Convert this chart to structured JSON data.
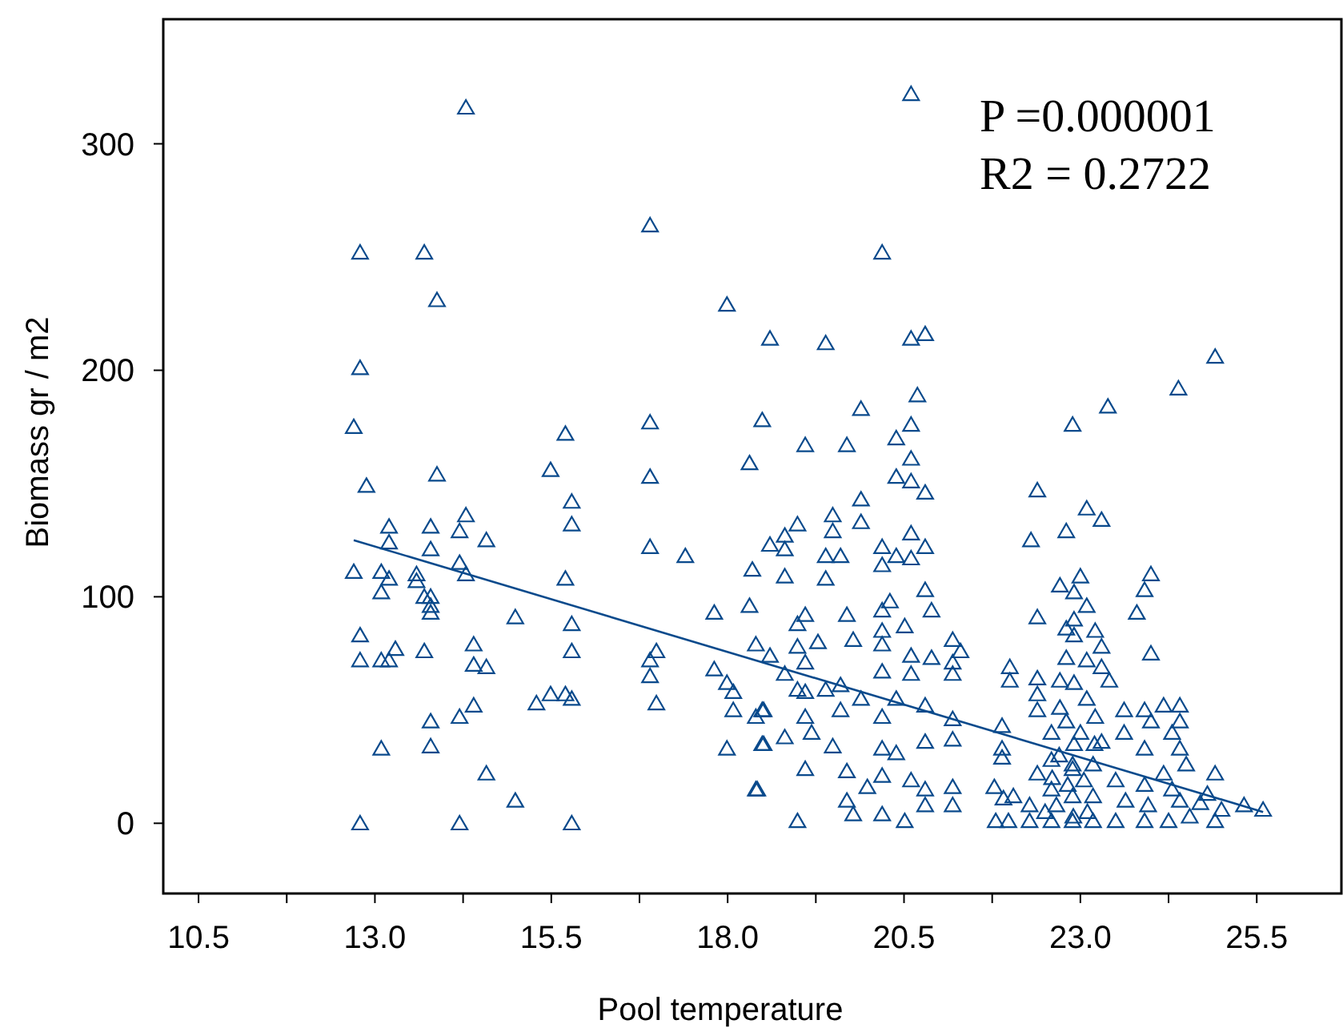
{
  "chart_data": {
    "type": "scatter",
    "xlabel": "Pool temperature",
    "ylabel": "Biomass gr / m2",
    "annotations": [
      "P =0.000001",
      "R2 = 0.2722"
    ],
    "xlim": [
      10.0,
      26.7
    ],
    "ylim": [
      -31,
      355
    ],
    "xticks": [
      {
        "value": 10.5,
        "label": "10.5"
      },
      {
        "value": 11.75,
        "label": null
      },
      {
        "value": 13,
        "label": "13.0"
      },
      {
        "value": 14.25,
        "label": null
      },
      {
        "value": 15.5,
        "label": "15.5"
      },
      {
        "value": 16.75,
        "label": null
      },
      {
        "value": 18,
        "label": "18.0"
      },
      {
        "value": 19.25,
        "label": null
      },
      {
        "value": 20.5,
        "label": "20.5"
      },
      {
        "value": 21.75,
        "label": null
      },
      {
        "value": 23,
        "label": "23.0"
      },
      {
        "value": 24.25,
        "label": null
      },
      {
        "value": 25.5,
        "label": "25.5"
      }
    ],
    "yticks": [
      0,
      100,
      200,
      300
    ],
    "grid": false,
    "series": [
      {
        "color": "#0a4a8c",
        "marker": "triangle",
        "x": [
          14.29,
          16.9,
          12.79,
          13.7,
          13.88,
          17.99,
          18.6,
          12.79,
          12.7,
          15.7,
          16.9,
          18.49,
          18.31,
          15.49,
          13.88,
          16.9,
          12.88,
          20.6,
          20.19,
          19.39,
          20.6,
          20.8,
          24.91,
          24.39,
          23.39,
          22.89,
          20.69,
          19.89,
          20.6,
          20.39,
          19.1,
          19.69,
          20.6,
          15.79,
          15.79,
          14.29,
          13.2,
          13.79,
          14.2,
          14.58,
          13.2,
          13.79,
          16.9,
          17.4,
          12.7,
          13.09,
          13.2,
          13.59,
          13.59,
          14.2,
          14.29,
          15.7,
          13.09,
          13.7,
          13.79,
          13.79,
          13.79,
          14.99,
          15.79,
          17.81,
          18.35,
          18.31,
          12.79,
          13.29,
          12.79,
          13.09,
          13.2,
          13.7,
          14.4,
          14.4,
          14.58,
          15.79,
          16.9,
          16.99,
          16.9,
          17.81,
          18.4,
          18.6,
          17.99,
          18.08,
          15.49,
          15.7,
          15.79,
          15.29,
          13.79,
          14.2,
          14.4,
          16.99,
          18.08,
          18.4,
          18.49,
          13.09,
          13.79,
          17.99,
          18.49,
          14.58,
          14.99,
          18.4,
          12.79,
          14.2,
          15.79,
          20.39,
          20.6,
          20.8,
          19.89,
          19.49,
          19.89,
          18.99,
          19.49,
          18.81,
          18.6,
          18.81,
          20.6,
          20.19,
          20.8,
          19.39,
          19.6,
          20.39,
          20.6,
          20.19,
          18.81,
          19.39,
          20.8,
          20.3,
          20.19,
          20.89,
          19.69,
          19.1,
          18.99,
          20.51,
          20.19,
          19.28,
          19.78,
          21.19,
          21.3,
          18.99,
          20.19,
          20.6,
          20.89,
          19.1,
          21.19,
          20.19,
          20.6,
          21.19,
          18.81,
          19.6,
          18.99,
          19.39,
          19.1,
          20.39,
          20.8,
          18.51,
          19.6,
          19.89,
          19.1,
          20.19,
          21.19,
          19.19,
          18.81,
          19.49,
          20.19,
          20.8,
          20.39,
          21.19,
          18.51,
          19.69,
          19.1,
          20.19,
          20.6,
          19.98,
          20.8,
          21.19,
          18.42,
          19.69,
          20.8,
          21.19,
          20.19,
          19.78,
          18.99,
          20.51,
          22.39,
          23.09,
          23.3,
          22.8,
          22.3,
          23.0,
          22.71,
          22.91,
          23.09,
          23.91,
          24.0,
          23.8,
          22.39,
          22.91,
          22.8,
          23.21,
          22.91,
          23.3,
          24.0,
          22.8,
          23.09,
          22.0,
          23.3,
          22.39,
          22.71,
          23.41,
          22.0,
          22.91,
          22.39,
          23.09,
          22.71,
          23.62,
          24.18,
          24.41,
          23.91,
          24.0,
          24.41,
          24.3,
          21.89,
          22.39,
          23.21,
          22.59,
          23.62,
          23.91,
          24.41,
          21.89,
          22.91,
          23.3,
          21.89,
          22.59,
          23.18,
          24.5,
          24.91,
          24.18,
          22.39,
          22.89,
          23.5,
          23.91,
          24.3,
          24.8,
          25.32,
          25.59,
          25.0,
          24.7,
          21.78,
          21.91,
          22.05,
          22.28,
          22.59,
          22.89,
          23.18,
          23.64,
          23.96,
          24.41,
          24.55,
          21.8,
          21.98,
          22.28,
          22.59,
          22.89,
          23.18,
          23.5,
          23.91,
          24.25,
          24.91,
          22.89,
          22.82,
          22.66,
          23.05,
          22.5,
          22.7,
          23.0,
          22.8,
          23.1,
          22.6,
          22.9,
          23.2
        ],
        "values": [
          316,
          264,
          252,
          252,
          231,
          229,
          214,
          201,
          175,
          172,
          177,
          178,
          159,
          156,
          154,
          153,
          149,
          322,
          252,
          212,
          214,
          216,
          206,
          192,
          184,
          176,
          189,
          183,
          176,
          170,
          167,
          167,
          161,
          142,
          132,
          136,
          131,
          131,
          129,
          125,
          124,
          121,
          122,
          118,
          111,
          111,
          108,
          110,
          107,
          115,
          110,
          108,
          102,
          100,
          100,
          96,
          93,
          91,
          88,
          93,
          112,
          96,
          83,
          77,
          72,
          72,
          72,
          76,
          79,
          70,
          69,
          76,
          72,
          76,
          65,
          68,
          79,
          74,
          62,
          58,
          57,
          57,
          55,
          53,
          45,
          47,
          52,
          53,
          50,
          47,
          50,
          33,
          34,
          33,
          35,
          22,
          10,
          15,
          0,
          0,
          0,
          153,
          151,
          146,
          143,
          136,
          133,
          132,
          129,
          127,
          123,
          121,
          128,
          122,
          122,
          118,
          118,
          118,
          117,
          114,
          109,
          108,
          103,
          98,
          94,
          94,
          92,
          92,
          88,
          87,
          85,
          80,
          81,
          81,
          76,
          78,
          79,
          74,
          73,
          71,
          71,
          67,
          66,
          66,
          66,
          61,
          59,
          59,
          58,
          55,
          52,
          50,
          50,
          55,
          47,
          47,
          46,
          40,
          38,
          34,
          33,
          36,
          31,
          37,
          35,
          23,
          24,
          21,
          19,
          16,
          15,
          16,
          15,
          10,
          8,
          8,
          4,
          4,
          1,
          1,
          147,
          139,
          134,
          129,
          125,
          109,
          105,
          102,
          96,
          103,
          110,
          93,
          91,
          90,
          86,
          85,
          83,
          78,
          75,
          73,
          72,
          69,
          69,
          64,
          63,
          63,
          63,
          62,
          57,
          55,
          51,
          50,
          52,
          52,
          50,
          45,
          45,
          40,
          43,
          50,
          47,
          40,
          40,
          33,
          33,
          33,
          35,
          36,
          29,
          28,
          26,
          26,
          22,
          22,
          22,
          24,
          19,
          17,
          15,
          13,
          8,
          6,
          6,
          9,
          16,
          11,
          12,
          8,
          15,
          12,
          12,
          10,
          8,
          10,
          3,
          1,
          1,
          1,
          1,
          1,
          1,
          1,
          1,
          1,
          1,
          26,
          17,
          8,
          19,
          5,
          30,
          40,
          45,
          5,
          20,
          3,
          35
        ]
      },
      {
        "type": "line",
        "color": "#0a4a8c",
        "x": [
          12.7,
          25.59
        ],
        "values": [
          125,
          5
        ],
        "line_style": "solid"
      }
    ]
  }
}
